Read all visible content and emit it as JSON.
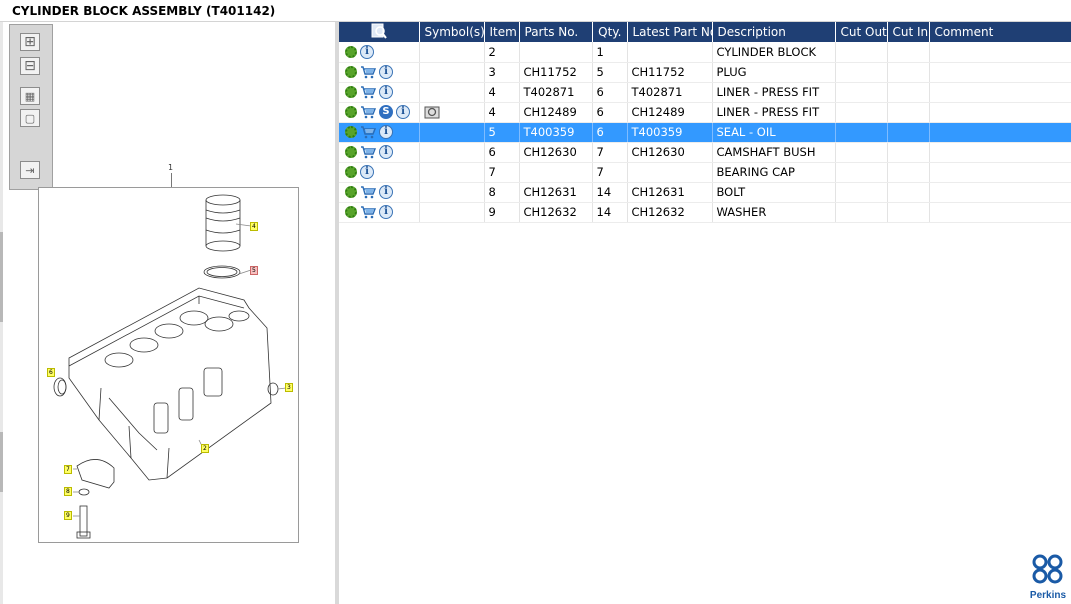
{
  "window": {
    "title": "CYLINDER BLOCK ASSEMBLY (T401142)"
  },
  "toolbar": {
    "buttons": [
      {
        "icon": "zoom-in-icon"
      },
      {
        "icon": "zoom-out-icon"
      },
      {
        "icon": "fit-all-icon"
      },
      {
        "icon": "fit-window-icon"
      },
      {
        "icon": "export-icon"
      }
    ]
  },
  "diagram": {
    "callouts": [
      "1",
      "4",
      "5",
      "3",
      "2",
      "6",
      "7",
      "8",
      "9"
    ]
  },
  "table": {
    "columns": [
      "",
      "Symbol(s)",
      "Item",
      "Parts No.",
      "Qty.",
      "Latest Part No.",
      "Description",
      "Cut Out",
      "Cut In",
      "Comment"
    ],
    "rows": [
      {
        "icons": [
          "gear",
          "info"
        ],
        "symbol": "",
        "item": "2",
        "part_no": "",
        "qty": "1",
        "latest_part_no": "",
        "description": "CYLINDER BLOCK",
        "cut_out": "",
        "cut_in": "",
        "comment": "",
        "selected": false
      },
      {
        "icons": [
          "gear",
          "cart",
          "info"
        ],
        "symbol": "",
        "item": "3",
        "part_no": "CH11752",
        "qty": "5",
        "latest_part_no": "CH11752",
        "description": "PLUG",
        "cut_out": "",
        "cut_in": "",
        "comment": "",
        "selected": false
      },
      {
        "icons": [
          "gear",
          "cart",
          "info"
        ],
        "symbol": "",
        "item": "4",
        "part_no": "T402871",
        "qty": "6",
        "latest_part_no": "T402871",
        "description": "LINER - PRESS FIT",
        "cut_out": "",
        "cut_in": "",
        "comment": "",
        "selected": false
      },
      {
        "icons": [
          "gear",
          "cart",
          "s",
          "info"
        ],
        "symbol": "kit",
        "item": "4",
        "part_no": "CH12489",
        "qty": "6",
        "latest_part_no": "CH12489",
        "description": "LINER - PRESS FIT",
        "cut_out": "",
        "cut_in": "",
        "comment": "",
        "selected": false
      },
      {
        "icons": [
          "gear",
          "cart",
          "info"
        ],
        "symbol": "",
        "item": "5",
        "part_no": "T400359",
        "qty": "6",
        "latest_part_no": "T400359",
        "description": "SEAL - OIL",
        "cut_out": "",
        "cut_in": "",
        "comment": "",
        "selected": true
      },
      {
        "icons": [
          "gear",
          "cart",
          "info"
        ],
        "symbol": "",
        "item": "6",
        "part_no": "CH12630",
        "qty": "7",
        "latest_part_no": "CH12630",
        "description": "CAMSHAFT BUSH",
        "cut_out": "",
        "cut_in": "",
        "comment": "",
        "selected": false
      },
      {
        "icons": [
          "gear",
          "info"
        ],
        "symbol": "",
        "item": "7",
        "part_no": "",
        "qty": "7",
        "latest_part_no": "",
        "description": "BEARING CAP",
        "cut_out": "",
        "cut_in": "",
        "comment": "",
        "selected": false
      },
      {
        "icons": [
          "gear",
          "cart",
          "info"
        ],
        "symbol": "",
        "item": "8",
        "part_no": "CH12631",
        "qty": "14",
        "latest_part_no": "CH12631",
        "description": "BOLT",
        "cut_out": "",
        "cut_in": "",
        "comment": "",
        "selected": false
      },
      {
        "icons": [
          "gear",
          "cart",
          "info"
        ],
        "symbol": "",
        "item": "9",
        "part_no": "CH12632",
        "qty": "14",
        "latest_part_no": "CH12632",
        "description": "WASHER",
        "cut_out": "",
        "cut_in": "",
        "comment": "",
        "selected": false
      }
    ]
  },
  "brand": {
    "name": "Perkins",
    "color": "#1a5aa6"
  },
  "colors": {
    "header": "#1f3f74",
    "selection": "#3399ff",
    "callout": "#ffff66"
  }
}
